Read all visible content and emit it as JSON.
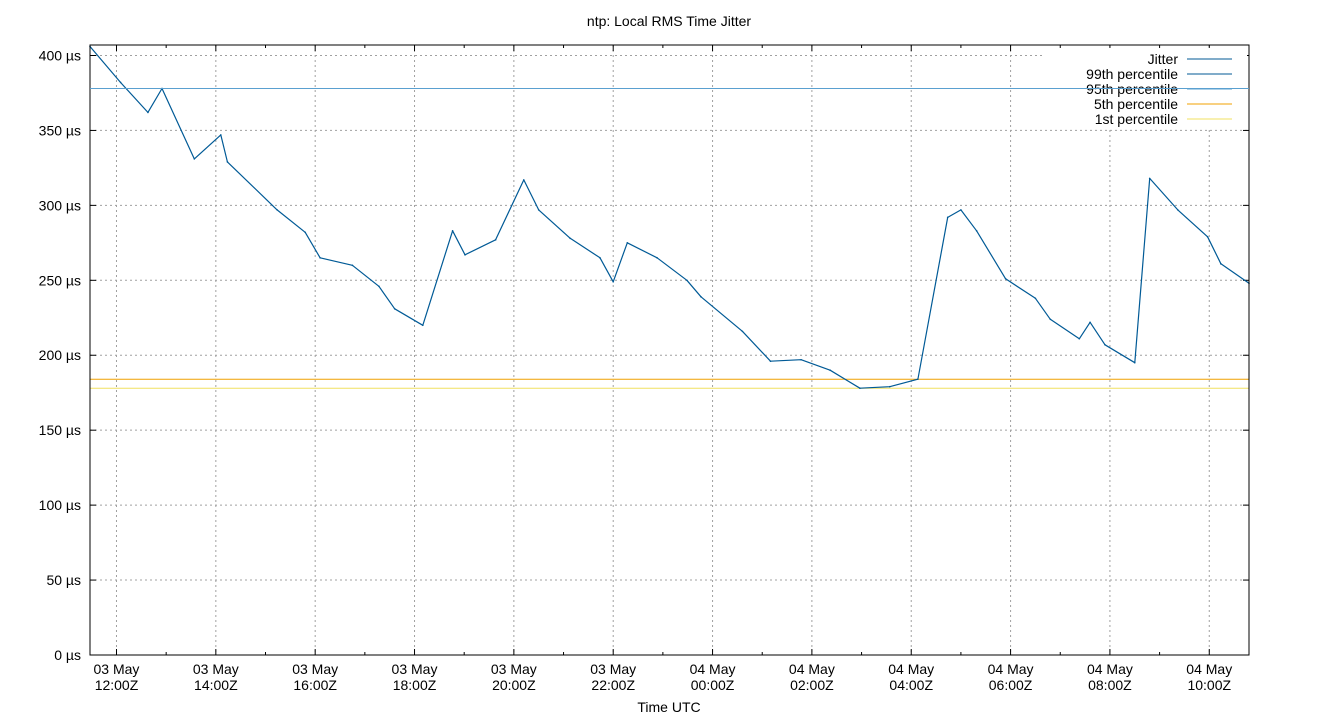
{
  "chart_data": {
    "type": "line",
    "title": "ntp: Local RMS Time Jitter",
    "xlabel": "Time UTC",
    "ylabel": "",
    "y_unit": "µs",
    "ylim": [
      0,
      407
    ],
    "xlim": [
      "2025-05-03T11:28Z",
      "2025-05-04T10:48Z"
    ],
    "grid": true,
    "legend_position": "top-right",
    "y_ticks": [
      {
        "value": 0,
        "label": "0 µs"
      },
      {
        "value": 50,
        "label": "50 µs"
      },
      {
        "value": 100,
        "label": "100 µs"
      },
      {
        "value": 150,
        "label": "150 µs"
      },
      {
        "value": 200,
        "label": "200 µs"
      },
      {
        "value": 250,
        "label": "250 µs"
      },
      {
        "value": 300,
        "label": "300 µs"
      },
      {
        "value": 350,
        "label": "350 µs"
      },
      {
        "value": 400,
        "label": "400 µs"
      }
    ],
    "x_ticks": [
      {
        "time": "2025-05-03T12:00Z",
        "date": "03 May",
        "clock": "12:00Z"
      },
      {
        "time": "2025-05-03T14:00Z",
        "date": "03 May",
        "clock": "14:00Z"
      },
      {
        "time": "2025-05-03T16:00Z",
        "date": "03 May",
        "clock": "16:00Z"
      },
      {
        "time": "2025-05-03T18:00Z",
        "date": "03 May",
        "clock": "18:00Z"
      },
      {
        "time": "2025-05-03T20:00Z",
        "date": "03 May",
        "clock": "20:00Z"
      },
      {
        "time": "2025-05-03T22:00Z",
        "date": "03 May",
        "clock": "22:00Z"
      },
      {
        "time": "2025-05-04T00:00Z",
        "date": "04 May",
        "clock": "00:00Z"
      },
      {
        "time": "2025-05-04T02:00Z",
        "date": "04 May",
        "clock": "02:00Z"
      },
      {
        "time": "2025-05-04T04:00Z",
        "date": "04 May",
        "clock": "04:00Z"
      },
      {
        "time": "2025-05-04T06:00Z",
        "date": "04 May",
        "clock": "06:00Z"
      },
      {
        "time": "2025-05-04T08:00Z",
        "date": "04 May",
        "clock": "08:00Z"
      },
      {
        "time": "2025-05-04T10:00Z",
        "date": "04 May",
        "clock": "10:00Z"
      }
    ],
    "x_minor_ticks": [
      "2025-05-03T13:00Z",
      "2025-05-03T15:00Z",
      "2025-05-03T17:00Z",
      "2025-05-03T19:00Z",
      "2025-05-03T21:00Z",
      "2025-05-03T23:00Z",
      "2025-05-04T01:00Z",
      "2025-05-04T03:00Z",
      "2025-05-04T05:00Z",
      "2025-05-04T07:00Z",
      "2025-05-04T09:00Z"
    ],
    "series": [
      {
        "name": "Jitter",
        "color": "#005a96",
        "points": [
          {
            "x": "2025-05-03T11:28Z",
            "y": 406
          },
          {
            "x": "2025-05-03T12:05Z",
            "y": 382
          },
          {
            "x": "2025-05-03T12:38Z",
            "y": 362
          },
          {
            "x": "2025-05-03T12:55Z",
            "y": 378
          },
          {
            "x": "2025-05-03T13:34Z",
            "y": 331
          },
          {
            "x": "2025-05-03T14:06Z",
            "y": 347
          },
          {
            "x": "2025-05-03T14:14Z",
            "y": 329
          },
          {
            "x": "2025-05-03T15:14Z",
            "y": 297
          },
          {
            "x": "2025-05-03T15:48Z",
            "y": 282
          },
          {
            "x": "2025-05-03T16:06Z",
            "y": 265
          },
          {
            "x": "2025-05-03T16:45Z",
            "y": 260
          },
          {
            "x": "2025-05-03T17:17Z",
            "y": 246
          },
          {
            "x": "2025-05-03T17:36Z",
            "y": 231
          },
          {
            "x": "2025-05-03T18:10Z",
            "y": 220
          },
          {
            "x": "2025-05-03T18:46Z",
            "y": 283
          },
          {
            "x": "2025-05-03T19:01Z",
            "y": 267
          },
          {
            "x": "2025-05-03T19:38Z",
            "y": 277
          },
          {
            "x": "2025-05-03T20:12Z",
            "y": 317
          },
          {
            "x": "2025-05-03T20:30Z",
            "y": 297
          },
          {
            "x": "2025-05-03T21:08Z",
            "y": 278
          },
          {
            "x": "2025-05-03T21:44Z",
            "y": 265
          },
          {
            "x": "2025-05-03T22:00Z",
            "y": 249
          },
          {
            "x": "2025-05-03T22:17Z",
            "y": 275
          },
          {
            "x": "2025-05-03T22:53Z",
            "y": 265
          },
          {
            "x": "2025-05-03T23:29Z",
            "y": 250
          },
          {
            "x": "2025-05-03T23:46Z",
            "y": 239
          },
          {
            "x": "2025-05-04T00:36Z",
            "y": 216
          },
          {
            "x": "2025-05-04T01:10Z",
            "y": 196
          },
          {
            "x": "2025-05-04T01:47Z",
            "y": 197
          },
          {
            "x": "2025-05-04T02:22Z",
            "y": 190
          },
          {
            "x": "2025-05-04T02:58Z",
            "y": 178
          },
          {
            "x": "2025-05-04T03:34Z",
            "y": 179
          },
          {
            "x": "2025-05-04T04:08Z",
            "y": 184
          },
          {
            "x": "2025-05-04T04:44Z",
            "y": 292
          },
          {
            "x": "2025-05-04T05:00Z",
            "y": 297
          },
          {
            "x": "2025-05-04T05:19Z",
            "y": 283
          },
          {
            "x": "2025-05-04T05:54Z",
            "y": 251
          },
          {
            "x": "2025-05-04T06:30Z",
            "y": 238
          },
          {
            "x": "2025-05-04T06:48Z",
            "y": 224
          },
          {
            "x": "2025-05-04T07:23Z",
            "y": 211
          },
          {
            "x": "2025-05-04T07:36Z",
            "y": 222
          },
          {
            "x": "2025-05-04T07:54Z",
            "y": 207
          },
          {
            "x": "2025-05-04T08:30Z",
            "y": 195
          },
          {
            "x": "2025-05-04T08:48Z",
            "y": 318
          },
          {
            "x": "2025-05-04T09:22Z",
            "y": 297
          },
          {
            "x": "2025-05-04T09:58Z",
            "y": 279
          },
          {
            "x": "2025-05-04T10:14Z",
            "y": 261
          },
          {
            "x": "2025-05-04T10:48Z",
            "y": 248
          }
        ]
      }
    ],
    "reference_lines": [
      {
        "name": "99th percentile",
        "color": "#005a96",
        "y": 378
      },
      {
        "name": "95th percentile",
        "color": "#5aa0d0",
        "y": 378
      },
      {
        "name": "5th percentile",
        "color": "#f0a000",
        "y": 184
      },
      {
        "name": "1st percentile",
        "color": "#f0e060",
        "y": 178
      }
    ]
  }
}
